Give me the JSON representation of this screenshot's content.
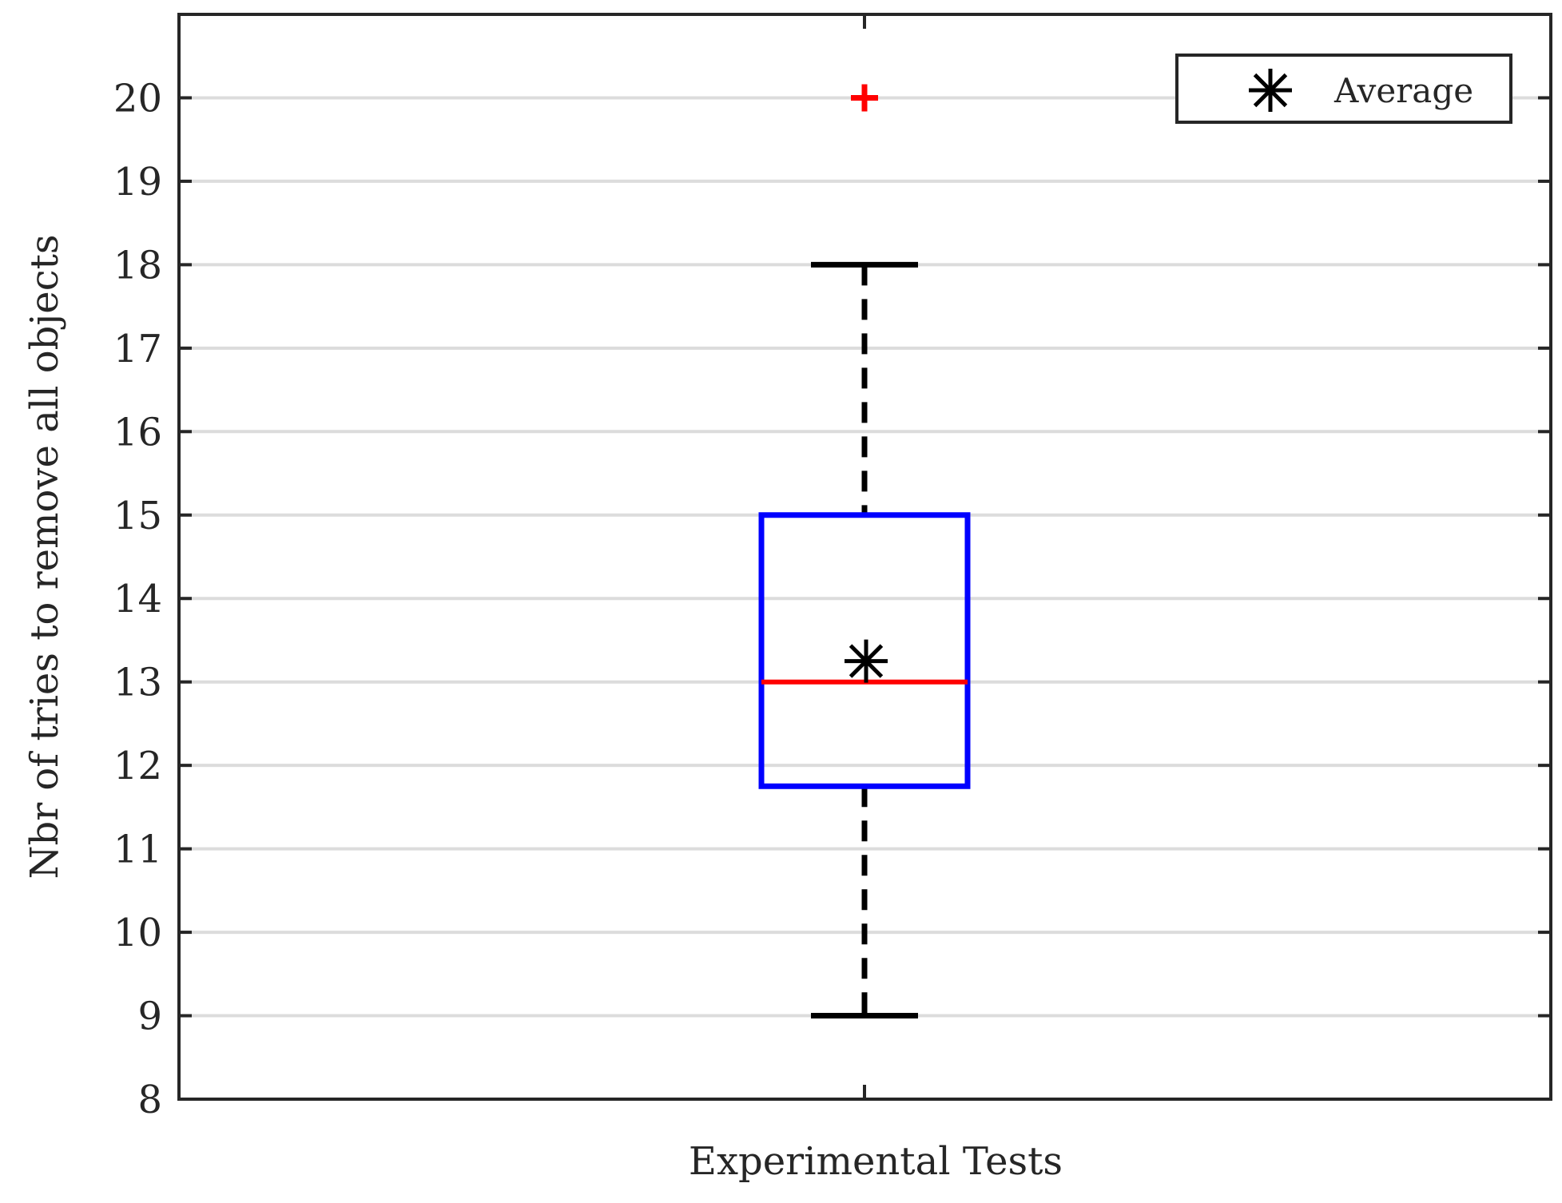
{
  "chart_data": {
    "type": "box",
    "title": "",
    "xlabel": "Experimental Tests",
    "ylabel": "Nbr of tries to remove all objects",
    "ylim": [
      8,
      21
    ],
    "yticks": [
      8,
      9,
      10,
      11,
      12,
      13,
      14,
      15,
      16,
      17,
      18,
      19,
      20
    ],
    "grid": "horizontal",
    "legend_position": "top-right",
    "legend": [
      {
        "label": "Average",
        "marker": "asterisk",
        "color": "#000000"
      }
    ],
    "boxes": [
      {
        "category": "",
        "whisker_low": 9,
        "q1": 11.75,
        "median": 13,
        "q3": 15,
        "whisker_high": 18,
        "mean": 13.25,
        "outliers": [
          20
        ]
      }
    ],
    "colors": {
      "box": "#0000ff",
      "median": "#ff0000",
      "outlier": "#ff0000",
      "whisker": "#000000",
      "mean_marker": "#000000",
      "grid": "#dcdcdc",
      "axes": "#262626"
    }
  }
}
